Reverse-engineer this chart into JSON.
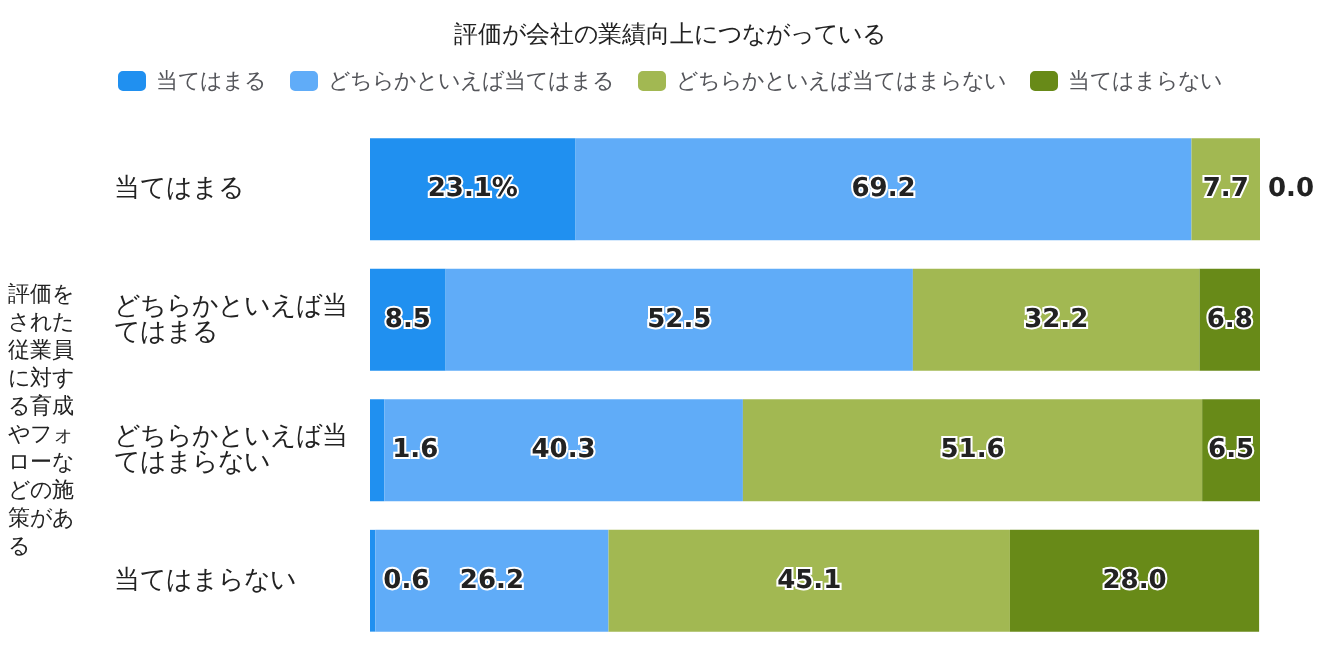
{
  "chart_data": {
    "type": "bar",
    "orientation": "horizontal",
    "stacked": true,
    "title": "評価が会社の業績向上につながっている",
    "ylabel": "評価をされた従業員に対する育成やフォローなどの施策がある",
    "categories": [
      "当てはまる",
      "どちらかといえば当てはまる",
      "どちらかといえば当てはまらない",
      "当てはまらない"
    ],
    "series": [
      {
        "name": "当てはまる",
        "color": "#2090f0",
        "values": [
          23.1,
          8.5,
          1.6,
          0.6
        ],
        "value_labels": [
          "23.1%",
          "8.5",
          "1.6",
          "0.6"
        ]
      },
      {
        "name": "どちらかといえば当てはまる",
        "color": "#60acf8",
        "values": [
          69.2,
          52.5,
          40.3,
          26.2
        ],
        "value_labels": [
          "69.2",
          "52.5",
          "40.3",
          "26.2"
        ]
      },
      {
        "name": "どちらかといえば当てはまらない",
        "color": "#a2b852",
        "values": [
          7.7,
          32.2,
          51.6,
          45.1
        ],
        "value_labels": [
          "7.7",
          "32.2",
          "51.6",
          "45.1"
        ]
      },
      {
        "name": "当てはまらない",
        "color": "#688a18",
        "values": [
          0.0,
          6.8,
          6.5,
          28.0
        ],
        "value_labels": [
          "0.0",
          "6.8",
          "6.5",
          "28.0"
        ]
      }
    ],
    "xlim": [
      0,
      100
    ],
    "tick_labels": "y",
    "legend": "top",
    "grid": false
  }
}
